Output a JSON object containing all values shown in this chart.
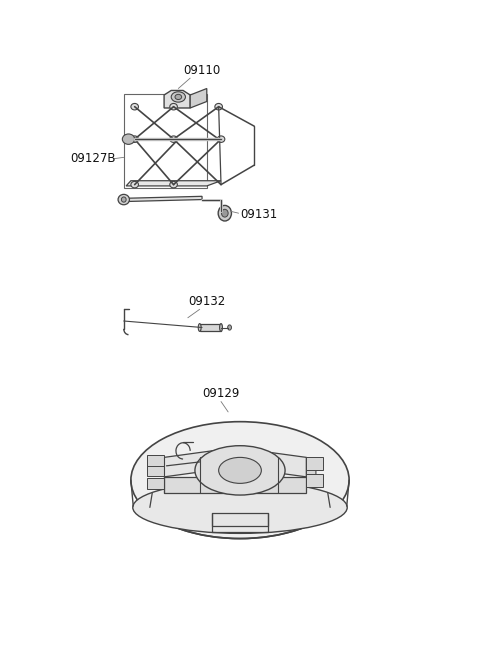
{
  "bg_color": "#ffffff",
  "line_color": "#444444",
  "label_color": "#111111",
  "fig_width": 4.8,
  "fig_height": 6.55,
  "dpi": 100,
  "label_fontsize": 8.5
}
